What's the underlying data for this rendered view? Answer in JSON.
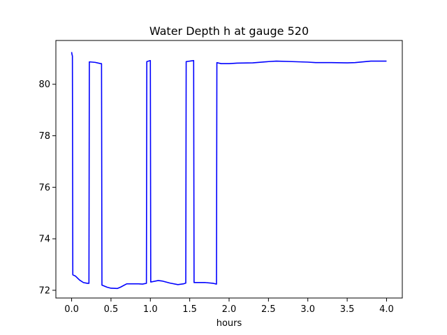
{
  "chart_data": {
    "type": "line",
    "title": "Water Depth h at gauge 520",
    "xlabel": "hours",
    "ylabel": "",
    "xlim": [
      -0.2,
      4.2
    ],
    "ylim": [
      71.7,
      81.7
    ],
    "xticks": [
      0.0,
      0.5,
      1.0,
      1.5,
      2.0,
      2.5,
      3.0,
      3.5,
      4.0
    ],
    "xtick_labels": [
      "0.0",
      "0.5",
      "1.0",
      "1.5",
      "2.0",
      "2.5",
      "3.0",
      "3.5",
      "4.0"
    ],
    "yticks": [
      72,
      74,
      76,
      78,
      80
    ],
    "ytick_labels": [
      "72",
      "74",
      "76",
      "78",
      "80"
    ],
    "grid": false,
    "series": [
      {
        "color": "#0000ff",
        "x": [
          0.0,
          0.005,
          0.01,
          0.015,
          0.05,
          0.1,
          0.15,
          0.2,
          0.22,
          0.225,
          0.3,
          0.37,
          0.38,
          0.385,
          0.45,
          0.5,
          0.58,
          0.62,
          0.7,
          0.75,
          0.85,
          0.9,
          0.95,
          0.955,
          1.0,
          1.005,
          1.1,
          1.15,
          1.25,
          1.35,
          1.42,
          1.45,
          1.455,
          1.55,
          1.555,
          1.65,
          1.7,
          1.8,
          1.84,
          1.845,
          1.9,
          2.0,
          2.1,
          2.3,
          2.5,
          2.6,
          2.8,
          3.0,
          3.1,
          3.3,
          3.5,
          3.6,
          3.8,
          3.9,
          4.0
        ],
        "y": [
          81.25,
          81.15,
          81.1,
          72.6,
          72.55,
          72.4,
          72.3,
          72.27,
          72.27,
          80.87,
          80.85,
          80.8,
          80.8,
          72.2,
          72.12,
          72.08,
          72.07,
          72.12,
          72.25,
          72.25,
          72.25,
          72.24,
          72.27,
          80.88,
          80.92,
          72.32,
          72.38,
          72.36,
          72.28,
          72.22,
          72.25,
          72.28,
          80.88,
          80.92,
          72.3,
          72.3,
          72.3,
          72.27,
          72.24,
          80.84,
          80.8,
          80.8,
          80.82,
          80.83,
          80.88,
          80.9,
          80.88,
          80.86,
          80.84,
          80.84,
          80.83,
          80.84,
          80.9,
          80.9,
          80.9
        ]
      }
    ]
  }
}
